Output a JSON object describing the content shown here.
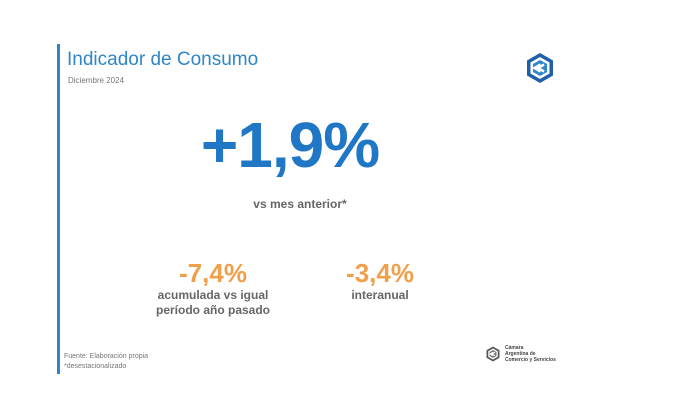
{
  "slide": {
    "title": "Indicador de Consumo",
    "date": "Diciembre 2024",
    "main": {
      "value": "+1,9%",
      "label": "vs mes anterior*"
    },
    "stats": [
      {
        "value": "-7,4%",
        "label_line1": "acumulada vs igual",
        "label_line2": "período año pasado"
      },
      {
        "value": "-3,4%",
        "label_line1": "interanual"
      }
    ],
    "footer": {
      "source": "Fuente: Elaboración propia",
      "note": "*desestacionalizado"
    },
    "org": {
      "line1": "Cámara",
      "line2": "Argentina de",
      "line3": "Comercio y Servicios"
    }
  },
  "colors": {
    "accent_blue": "#2e86c8",
    "value_blue": "#1f77c6",
    "value_orange": "#f0a04b",
    "label_gray": "#666666"
  },
  "icons": [
    "cac-logo-icon",
    "cac-logo-small-icon"
  ]
}
